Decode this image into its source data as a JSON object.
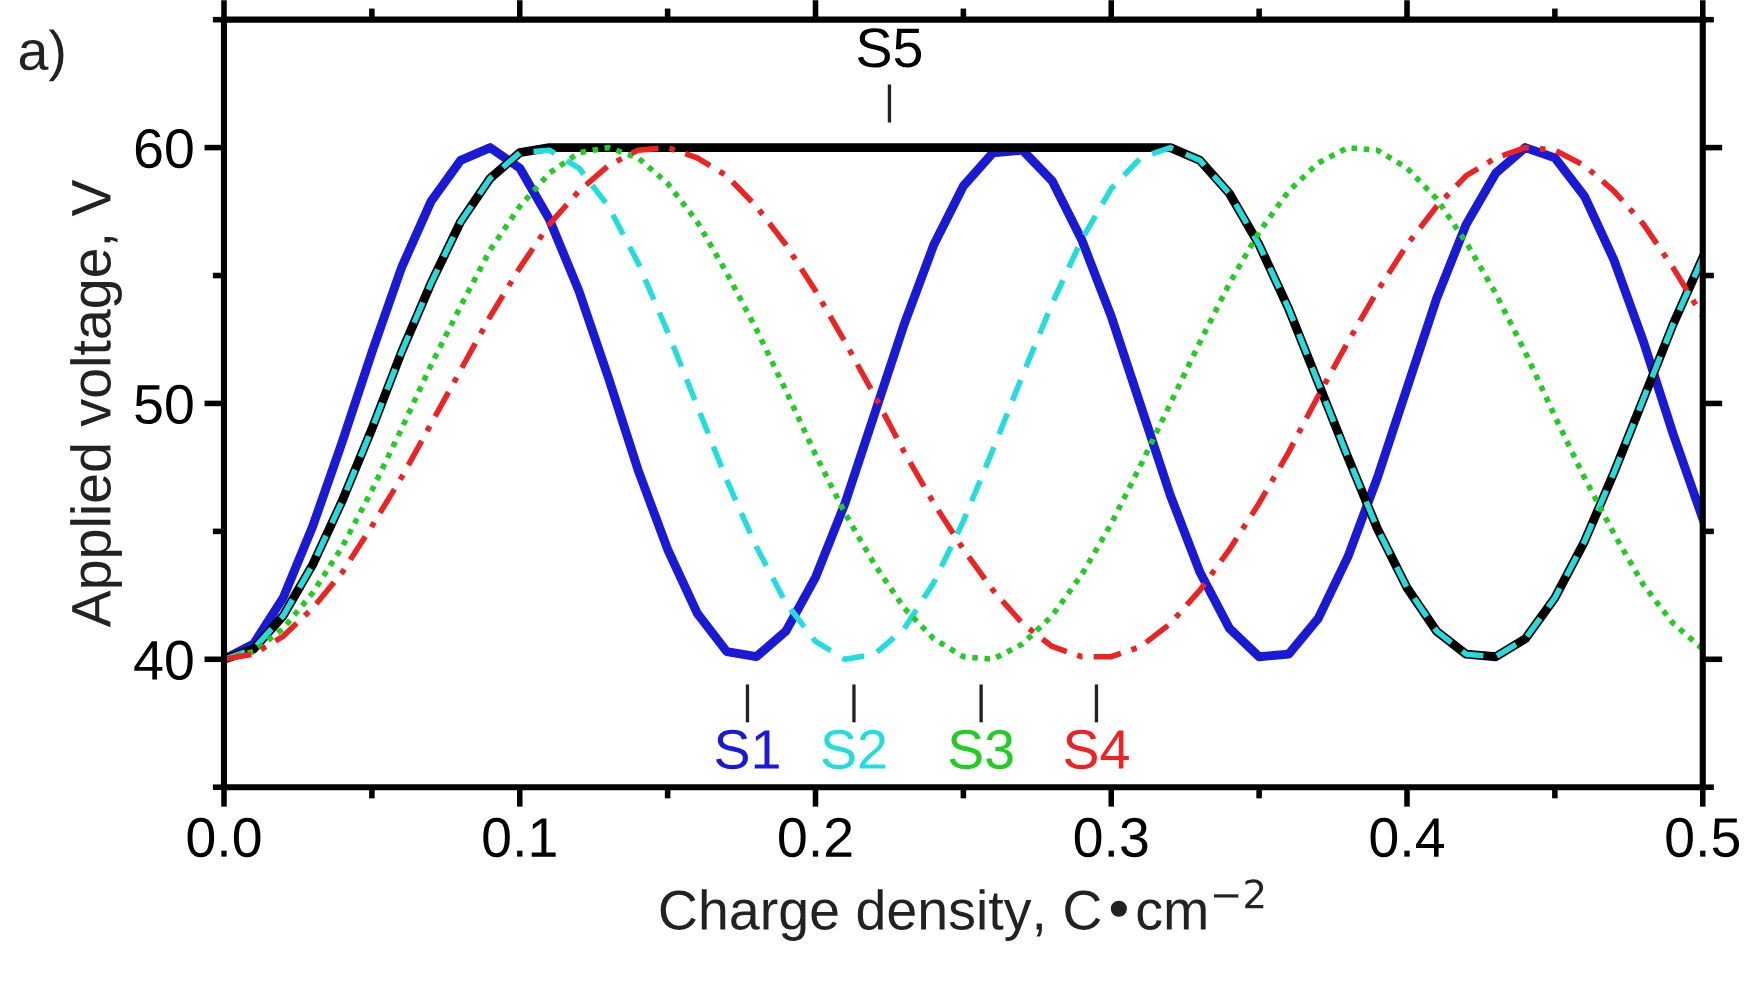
{
  "chart_data": {
    "type": "line",
    "title": "a)",
    "xlabel": "Charge density, C•cm$^{−2}$",
    "ylabel": "Applied voltage, V",
    "x": [
      0,
      0.01,
      0.02,
      0.03,
      0.04,
      0.05,
      0.06,
      0.07,
      0.08,
      0.09,
      0.1,
      0.11,
      0.12,
      0.13,
      0.14,
      0.15,
      0.16,
      0.17,
      0.18,
      0.19,
      0.2,
      0.21,
      0.22,
      0.23,
      0.24,
      0.25,
      0.26,
      0.27,
      0.28,
      0.29,
      0.3,
      0.31,
      0.32,
      0.33,
      0.34,
      0.35,
      0.36,
      0.37,
      0.38,
      0.39,
      0.4,
      0.41,
      0.42,
      0.43,
      0.44,
      0.45,
      0.46,
      0.47,
      0.48,
      0.49,
      0.5
    ],
    "series": [
      {
        "color": "#1a1ad6",
        "line_style": "solid",
        "values": [
          40,
          40.6,
          42.4,
          45.2,
          48.5,
          52.0,
          55.3,
          57.9,
          59.5,
          60.0,
          59.2,
          57.2,
          54.4,
          51.0,
          47.4,
          44.3,
          41.8,
          40.3,
          40.1,
          41.1,
          43.2,
          46.1,
          49.6,
          53.1,
          56.2,
          58.5,
          59.8,
          59.9,
          58.7,
          56.4,
          53.4,
          49.9,
          46.4,
          43.4,
          41.2,
          40.1,
          40.2,
          41.6,
          44.0,
          47.1,
          50.6,
          54.1,
          57.0,
          59.0,
          60.0,
          59.6,
          58.1,
          55.6,
          52.4,
          48.8,
          45.5
        ]
      },
      {
        "color": "#000000",
        "line_style": "solid",
        "values": [
          40,
          40.4,
          41.7,
          43.7,
          46.2,
          49.0,
          52.0,
          54.7,
          57.1,
          58.8,
          59.8,
          60,
          60,
          60,
          60,
          60,
          60,
          60,
          60,
          60,
          60,
          60,
          60,
          60,
          60,
          60,
          60,
          60,
          60,
          60,
          60,
          60,
          60.0,
          59.5,
          58.2,
          56.2,
          53.7,
          50.8,
          47.9,
          45.1,
          42.8,
          41.1,
          40.2,
          40.1,
          40.8,
          42.4,
          44.6,
          47.3,
          50.2,
          53.1,
          55.7
        ]
      },
      {
        "color": "#22dddd",
        "line_style": "dashed",
        "values": [
          40,
          40.4,
          41.7,
          43.7,
          46.2,
          49.0,
          52.0,
          54.7,
          57.1,
          58.8,
          59.8,
          59.9,
          59.2,
          57.7,
          55.5,
          52.8,
          49.9,
          47.0,
          44.4,
          42.2,
          40.7,
          40.0,
          40.2,
          41.2,
          43.0,
          45.4,
          48.2,
          51.1,
          53.9,
          56.4,
          58.4,
          59.6,
          60.0,
          59.5,
          58.2,
          56.2,
          53.7,
          50.8,
          47.9,
          45.1,
          42.8,
          41.1,
          40.2,
          40.1,
          40.8,
          42.4,
          44.6,
          47.3,
          50.2,
          53.1,
          55.7
        ]
      },
      {
        "color": "#22cc22",
        "line_style": "dotted",
        "values": [
          40,
          40.3,
          41.2,
          42.6,
          44.4,
          46.6,
          49.0,
          51.5,
          53.8,
          56.0,
          57.7,
          59.0,
          59.8,
          60.0,
          59.6,
          58.6,
          57.1,
          55.1,
          52.9,
          50.5,
          48.0,
          45.7,
          43.7,
          42.0,
          40.8,
          40.1,
          40.0,
          40.6,
          41.7,
          43.3,
          45.3,
          47.6,
          50.0,
          52.4,
          54.7,
          56.7,
          58.3,
          59.4,
          60.0,
          59.9,
          59.2,
          58.0,
          56.3,
          54.3,
          52.0,
          49.5,
          47.1,
          44.9,
          42.9,
          41.4,
          40.4
        ]
      },
      {
        "color": "#ee2222",
        "line_style": "dashdot",
        "values": [
          40,
          40.2,
          40.9,
          42.0,
          43.4,
          45.2,
          47.1,
          49.2,
          51.3,
          53.4,
          55.3,
          57.0,
          58.3,
          59.3,
          59.9,
          60.0,
          59.6,
          58.9,
          57.7,
          56.2,
          54.4,
          52.4,
          50.3,
          48.1,
          46.1,
          44.3,
          42.7,
          41.4,
          40.5,
          40.1,
          40.1,
          40.5,
          41.4,
          42.7,
          44.3,
          46.1,
          48.1,
          50.3,
          52.4,
          54.4,
          56.2,
          57.7,
          58.9,
          59.6,
          60.0,
          59.9,
          59.3,
          58.3,
          57.0,
          55.3,
          53.4
        ]
      }
    ],
    "annotations": [
      {
        "text": "S1",
        "x": 0.177,
        "y": 40
      },
      {
        "text": "S2",
        "x": 0.213,
        "y": 40
      },
      {
        "text": "S3",
        "x": 0.256,
        "y": 40
      },
      {
        "text": "S4",
        "x": 0.295,
        "y": 40
      },
      {
        "text": "S5",
        "x": 0.225,
        "y": 60
      }
    ],
    "xlim": [
      0,
      0.5
    ],
    "ylim": [
      35,
      65
    ],
    "xticks": [
      {
        "value": 0,
        "label": "0.0"
      },
      {
        "value": 0.1,
        "label": "0.1"
      },
      {
        "value": 0.2,
        "label": "0.2"
      },
      {
        "value": 0.3,
        "label": "0.3"
      },
      {
        "value": 0.4,
        "label": "0.4"
      },
      {
        "value": 0.5,
        "label": "0.5"
      }
    ],
    "yticks": [
      40,
      50,
      60
    ],
    "grid": false,
    "legend": false
  }
}
